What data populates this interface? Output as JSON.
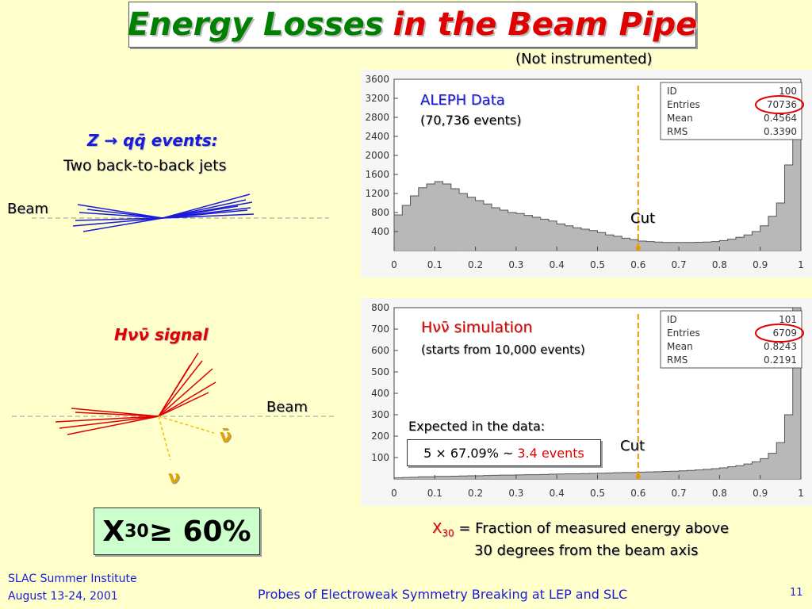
{
  "title": {
    "part1": "Energy Losses",
    "part2": "in the Beam Pipe"
  },
  "subtitle": "(Not instrumented)",
  "z_diagram": {
    "title": "Z → qq̄ events:",
    "subtitle": "Two back-to-back jets",
    "beam_label": "Beam",
    "jet_color": "#1a1adc"
  },
  "h_diagram": {
    "title": "Hνν̄ signal",
    "beam_label": "Beam",
    "nubar": "ν̄",
    "nu": "ν",
    "jet_color": "#e00000",
    "neutrino_color": "#f0c000"
  },
  "x30_box": {
    "main": "X",
    "sub": "30",
    "rest": " ≥ 60%"
  },
  "plot1": {
    "label": "ALEPH Data",
    "sublabel": "(70,736 events)",
    "cut_label": "Cut",
    "stats": {
      "id_label": "ID",
      "id": "100",
      "entries_label": "Entries",
      "entries": "70736",
      "mean_label": "Mean",
      "mean": "0.4564",
      "rms_label": "RMS",
      "rms": "0.3390"
    }
  },
  "plot2": {
    "label": "Hνν̄ simulation",
    "sublabel": "(starts from 10,000 events)",
    "cut_label": "Cut",
    "expected_label": "Expected in the data:",
    "calc_text": "5 × 67.09% ~",
    "calc_result": "3.4 events",
    "stats": {
      "id_label": "ID",
      "id": "101",
      "entries_label": "Entries",
      "entries": "6709",
      "mean_label": "Mean",
      "mean": "0.8243",
      "rms_label": "RMS",
      "rms": "0.2191"
    }
  },
  "definition": {
    "x": "X",
    "sub": "30",
    "line1_rest": " = Fraction of measured energy above",
    "line2": "30 degrees from the beam axis"
  },
  "footer": {
    "line1": "SLAC Summer Institute",
    "line2": "August 13-24, 2001",
    "center": "Probes of Electroweak Symmetry Breaking at LEP and SLC",
    "page": "11"
  },
  "chart_data": [
    {
      "type": "bar",
      "x": [
        0.0,
        0.02,
        0.04,
        0.06,
        0.08,
        0.1,
        0.12,
        0.14,
        0.16,
        0.18,
        0.2,
        0.22,
        0.24,
        0.26,
        0.28,
        0.3,
        0.32,
        0.34,
        0.36,
        0.38,
        0.4,
        0.42,
        0.44,
        0.46,
        0.48,
        0.5,
        0.52,
        0.54,
        0.56,
        0.58,
        0.6,
        0.62,
        0.64,
        0.66,
        0.68,
        0.7,
        0.72,
        0.74,
        0.76,
        0.78,
        0.8,
        0.82,
        0.84,
        0.86,
        0.88,
        0.9,
        0.92,
        0.94,
        0.96,
        0.98
      ],
      "values": [
        750,
        950,
        1150,
        1320,
        1400,
        1450,
        1400,
        1300,
        1200,
        1120,
        1050,
        980,
        900,
        850,
        800,
        780,
        740,
        700,
        660,
        620,
        560,
        520,
        480,
        450,
        420,
        380,
        330,
        300,
        260,
        230,
        200,
        190,
        180,
        170,
        170,
        170,
        170,
        175,
        180,
        190,
        210,
        240,
        280,
        330,
        400,
        520,
        720,
        1000,
        1800,
        3500
      ],
      "xlim": [
        0,
        1
      ],
      "ylim": [
        0,
        3600
      ],
      "xticks": [
        "0",
        "0.1",
        "0.2",
        "0.3",
        "0.4",
        "0.5",
        "0.6",
        "0.7",
        "0.8",
        "0.9",
        "1"
      ],
      "yticks": [
        "400",
        "800",
        "1200",
        "1600",
        "2000",
        "2400",
        "2800",
        "3200",
        "3600"
      ],
      "cut": 0.6
    },
    {
      "type": "bar",
      "x": [
        0.0,
        0.02,
        0.04,
        0.06,
        0.08,
        0.1,
        0.12,
        0.14,
        0.16,
        0.18,
        0.2,
        0.22,
        0.24,
        0.26,
        0.28,
        0.3,
        0.32,
        0.34,
        0.36,
        0.38,
        0.4,
        0.42,
        0.44,
        0.46,
        0.48,
        0.5,
        0.52,
        0.54,
        0.56,
        0.58,
        0.6,
        0.62,
        0.64,
        0.66,
        0.68,
        0.7,
        0.72,
        0.74,
        0.76,
        0.78,
        0.8,
        0.82,
        0.84,
        0.86,
        0.88,
        0.9,
        0.92,
        0.94,
        0.96,
        0.98
      ],
      "values": [
        5,
        7,
        8,
        10,
        10,
        12,
        12,
        13,
        14,
        15,
        15,
        16,
        17,
        18,
        18,
        19,
        20,
        20,
        21,
        22,
        23,
        24,
        24,
        25,
        26,
        27,
        28,
        29,
        30,
        30,
        32,
        33,
        34,
        35,
        36,
        38,
        40,
        42,
        45,
        48,
        52,
        57,
        62,
        70,
        80,
        95,
        120,
        170,
        300,
        800
      ],
      "xlim": [
        0,
        1
      ],
      "ylim": [
        0,
        800
      ],
      "xticks": [
        "0",
        "0.1",
        "0.2",
        "0.3",
        "0.4",
        "0.5",
        "0.6",
        "0.7",
        "0.8",
        "0.9",
        "1"
      ],
      "yticks": [
        "100",
        "200",
        "300",
        "400",
        "500",
        "600",
        "700",
        "800"
      ],
      "cut": 0.6
    }
  ]
}
